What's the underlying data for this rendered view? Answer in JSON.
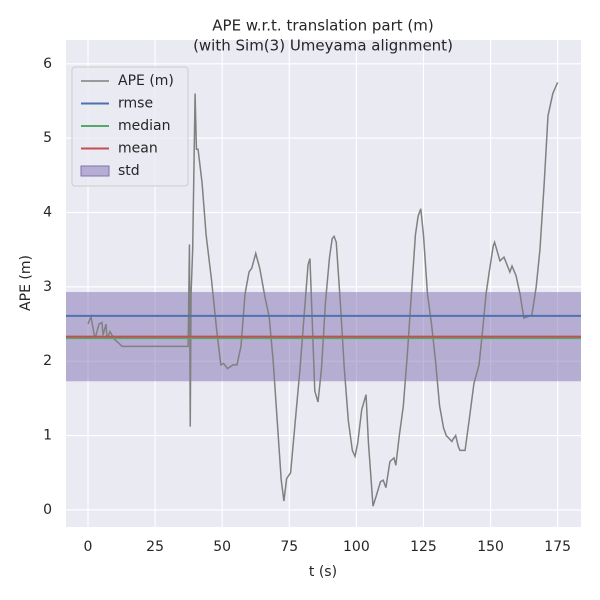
{
  "chart_data": {
    "type": "line",
    "title": [
      "APE w.r.t. translation part (m)",
      "(with Sim(3) Umeyama alignment)"
    ],
    "xlabel": "t (s)",
    "ylabel": "APE (m)",
    "xlim": [
      -8.2,
      183.7
    ],
    "ylim": [
      -0.23,
      6.32
    ],
    "xticks": [
      0,
      25,
      50,
      75,
      100,
      125,
      150,
      175
    ],
    "yticks": [
      0,
      1,
      2,
      3,
      4,
      5,
      6
    ],
    "grid": true,
    "legend": "upper left",
    "x": [
      0,
      1.1,
      2.6,
      4.1,
      5.2,
      5.6,
      6.7,
      7.1,
      8.2,
      9.7,
      11.2,
      12.7,
      37.3,
      37.8,
      38.1,
      38.4,
      39,
      39.9,
      40.4,
      41,
      42.5,
      44,
      46,
      48,
      49.5,
      50.5,
      52,
      54,
      55.5,
      57,
      58.5,
      60,
      61,
      62.5,
      64,
      66,
      67.5,
      69,
      70.5,
      72,
      73,
      74,
      75.5,
      77,
      79,
      80.5,
      82,
      82.7,
      83.5,
      84.5,
      85.7,
      87,
      88.5,
      90,
      91,
      91.7,
      92.5,
      94,
      95.5,
      97,
      98.5,
      99.5,
      100.5,
      102,
      103.6,
      104.5,
      106.2,
      107.5,
      109,
      110,
      111,
      112.5,
      114,
      114.7,
      116,
      117.5,
      119,
      120.5,
      122,
      123,
      124,
      125,
      126.5,
      128,
      129.5,
      131,
      132.5,
      133.5,
      135.6,
      136,
      137,
      138,
      138.6,
      140.5,
      142,
      143.8,
      145.7,
      147,
      148.3,
      149.5,
      151,
      151.5,
      153.5,
      155,
      157.2,
      158,
      159.5,
      161,
      162.4,
      164,
      165.4,
      167,
      168.4,
      170,
      171.4,
      173.2,
      175
    ],
    "series": [
      {
        "name": "APE (m)",
        "color": "#808080",
        "values": [
          2.5,
          2.6,
          2.3,
          2.5,
          2.52,
          2.35,
          2.5,
          2.3,
          2.4,
          2.3,
          2.25,
          2.2,
          2.2,
          3.57,
          1.12,
          2.9,
          3.5,
          5.6,
          4.85,
          4.85,
          4.4,
          3.7,
          3.1,
          2.4,
          1.95,
          1.97,
          1.9,
          1.95,
          1.95,
          2.2,
          2.9,
          3.2,
          3.25,
          3.45,
          3.25,
          2.85,
          2.6,
          2.0,
          1.2,
          0.4,
          0.12,
          0.42,
          0.5,
          1.1,
          1.9,
          2.6,
          3.3,
          3.38,
          2.6,
          1.6,
          1.45,
          1.9,
          2.8,
          3.4,
          3.65,
          3.68,
          3.6,
          2.8,
          1.9,
          1.2,
          0.8,
          0.72,
          0.9,
          1.35,
          1.55,
          0.9,
          0.05,
          0.2,
          0.38,
          0.4,
          0.3,
          0.65,
          0.7,
          0.6,
          1.0,
          1.4,
          2.1,
          2.9,
          3.7,
          3.95,
          4.05,
          3.7,
          2.9,
          2.5,
          2.0,
          1.4,
          1.1,
          1.0,
          0.92,
          0.95,
          1.0,
          0.85,
          0.8,
          0.8,
          1.2,
          1.7,
          1.95,
          2.4,
          2.9,
          3.2,
          3.55,
          3.6,
          3.35,
          3.4,
          3.2,
          3.28,
          3.15,
          2.9,
          2.58,
          2.6,
          2.62,
          3.0,
          3.5,
          4.4,
          5.3,
          5.6,
          5.75
        ]
      }
    ],
    "stats": [
      {
        "name": "rmse",
        "color": "#4c72b0",
        "value": 2.61
      },
      {
        "name": "median",
        "color": "#55a868",
        "value": 2.31
      },
      {
        "name": "mean",
        "color": "#c44e52",
        "value": 2.33
      }
    ],
    "std": {
      "name": "std",
      "color": "#8172b2",
      "value": 0.6
    }
  }
}
